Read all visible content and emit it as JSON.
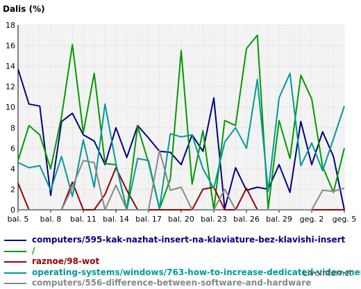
{
  "chart_data": {
    "type": "line",
    "ylabel": "Dalis (%)",
    "ylim": [
      0,
      18
    ],
    "yticks": [
      0,
      2,
      4,
      6,
      8,
      10,
      12,
      14,
      16,
      18
    ],
    "x": [
      "bal. 5",
      "bal. 6",
      "bal. 7",
      "bal. 8",
      "bal. 9",
      "bal. 10",
      "bal. 11",
      "bal. 12",
      "bal. 13",
      "bal. 14",
      "bal. 15",
      "bal. 16",
      "bal. 17",
      "bal. 18",
      "bal. 19",
      "bal. 20",
      "bal. 21",
      "bal. 22",
      "bal. 23",
      "bal. 24",
      "bal. 25",
      "bal. 26",
      "bal. 27",
      "bal. 28",
      "bal. 29",
      "bal. 30",
      "geg. 1",
      "geg. 2",
      "geg. 3",
      "geg. 4",
      "geg. 5"
    ],
    "xtick_labels": [
      "bal. 5",
      "bal. 8",
      "bal. 11",
      "bal. 14",
      "bal. 17",
      "bal. 20",
      "bal. 23",
      "bal. 26",
      "bal. 29",
      "geg. 2",
      "geg. 5"
    ],
    "grid": true,
    "series": [
      {
        "name": "computers/595-kak-nazhat-insert-na-klaviature-bez-klavishi-insert",
        "color": "#000080",
        "values": [
          13.7,
          10.3,
          10.1,
          1.4,
          8.6,
          9.4,
          7.3,
          6.7,
          4.4,
          8.0,
          5.1,
          8.2,
          7.0,
          5.7,
          5.6,
          4.4,
          7.3,
          5.7,
          10.9,
          0.1,
          4.1,
          1.9,
          2.2,
          2.0,
          4.4,
          1.7,
          8.6,
          4.4,
          7.6,
          5.2,
          0
        ]
      },
      {
        "name": "/",
        "color": "#009900",
        "values": [
          4.8,
          8.2,
          7.3,
          4.0,
          9.1,
          16.1,
          7.5,
          13.3,
          4.5,
          4.4,
          0,
          8.1,
          4.6,
          0.1,
          3.0,
          15.5,
          2.5,
          7.7,
          0,
          8.7,
          8.2,
          15.7,
          17.0,
          0.1,
          8.7,
          5.0,
          13.1,
          10.8,
          4.2,
          1.7,
          6.0
        ]
      },
      {
        "name": "raznoe/98-wot",
        "color": "#990000",
        "values": [
          2.6,
          0,
          0,
          0,
          0,
          2.7,
          0,
          0,
          1.5,
          4.1,
          1.9,
          0,
          0,
          0,
          0,
          0,
          0,
          2.0,
          2.2,
          0,
          0,
          2.1,
          0,
          0,
          0,
          0,
          0,
          0,
          0,
          0,
          0
        ]
      },
      {
        "name": "operating-systems/windows/763-how-to-increase-dedicated-video-memory",
        "color": "#009999",
        "values": [
          4.6,
          4.1,
          4.3,
          1.9,
          5.2,
          1.3,
          6.8,
          2.2,
          10.3,
          4.5,
          0,
          5.0,
          4.8,
          0.1,
          7.4,
          7.1,
          7.3,
          4.0,
          2.1,
          6.6,
          8.0,
          6.0,
          12.7,
          1.8,
          10.9,
          13.3,
          4.3,
          6.5,
          3.8,
          6.9,
          10.1
        ]
      },
      {
        "name": "computers/556-difference-between-software-and-hardware",
        "color": "#888888",
        "values": [
          0,
          0,
          0,
          0,
          0,
          2.2,
          4.8,
          4.6,
          0,
          2.4,
          0,
          0,
          0,
          5.8,
          1.9,
          2.2,
          0,
          0,
          0,
          2.0,
          0,
          0,
          0,
          0,
          0,
          0,
          0,
          0,
          1.9,
          1.8,
          2.1
        ]
      }
    ]
  },
  "credit": "LiveInternet"
}
